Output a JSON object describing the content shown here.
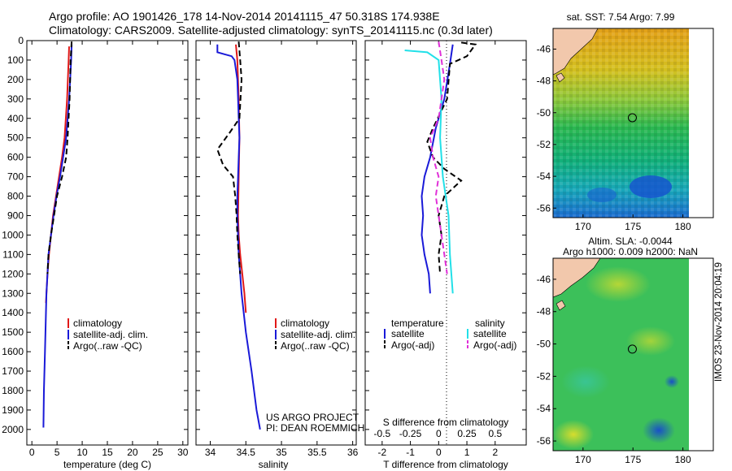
{
  "header": {
    "line1": "Argo profile: AO 1901426_178 14-Nov-2014 20141115_47 50.318S 174.938E",
    "line2": "Climatology: CARS2009. Satellite-adjusted climatology: synTS_20141115.nc (0.3d later)"
  },
  "colors": {
    "climatology": "#e01818",
    "satellite": "#1a1ad8",
    "argo": "#000000",
    "sat_salinity": "#22e0e8",
    "argo_salinity": "#e030d8"
  },
  "chart_data": [
    {
      "type": "line",
      "xlabel": "temperature (deg C)",
      "ylabel": "",
      "xlim": [
        -1,
        31
      ],
      "ylim": [
        2080,
        0
      ],
      "x_ticks": [
        "0",
        "5",
        "10",
        "15",
        "20",
        "25",
        "30"
      ],
      "y_ticks": [
        "0",
        "100",
        "200",
        "300",
        "400",
        "500",
        "600",
        "700",
        "800",
        "900",
        "1000",
        "1100",
        "1200",
        "1300",
        "1400",
        "1500",
        "1600",
        "1700",
        "1800",
        "1900",
        "2000"
      ],
      "legend_position": "lower-right",
      "series": [
        {
          "name": "climatology",
          "color_key": "climatology",
          "dash": "solid",
          "points": [
            [
              7.4,
              30
            ],
            [
              7.3,
              100
            ],
            [
              7.0,
              300
            ],
            [
              6.5,
              500
            ],
            [
              6.0,
              600
            ],
            [
              5.4,
              700
            ],
            [
              4.8,
              800
            ],
            [
              4.2,
              900
            ],
            [
              3.8,
              1000
            ],
            [
              3.4,
              1100
            ],
            [
              3.1,
              1200
            ],
            [
              2.9,
              1300
            ],
            [
              2.8,
              1350
            ]
          ]
        },
        {
          "name": "satellite-adj. clim.",
          "color_key": "satellite",
          "dash": "solid",
          "points": [
            [
              7.9,
              20
            ],
            [
              7.8,
              100
            ],
            [
              7.4,
              300
            ],
            [
              6.8,
              500
            ],
            [
              6.2,
              600
            ],
            [
              5.6,
              700
            ],
            [
              4.9,
              800
            ],
            [
              4.3,
              900
            ],
            [
              3.8,
              1000
            ],
            [
              3.3,
              1100
            ],
            [
              3.1,
              1200
            ],
            [
              2.9,
              1300
            ],
            [
              2.8,
              1400
            ],
            [
              2.6,
              1600
            ],
            [
              2.4,
              1800
            ],
            [
              2.3,
              1990
            ]
          ]
        },
        {
          "name": "Argo(..raw -QC)",
          "color_key": "argo",
          "dash": "dashed",
          "points": [
            [
              7.9,
              5
            ],
            [
              7.8,
              50
            ],
            [
              7.7,
              100
            ],
            [
              7.5,
              300
            ],
            [
              7.1,
              500
            ],
            [
              6.8,
              600
            ],
            [
              6.0,
              700
            ],
            [
              5.0,
              800
            ],
            [
              4.4,
              900
            ],
            [
              3.8,
              1000
            ],
            [
              3.3,
              1100
            ],
            [
              3.1,
              1200
            ]
          ]
        }
      ]
    },
    {
      "type": "line",
      "xlabel": "salinity",
      "ylabel": "",
      "xlim": [
        33.8,
        36.05
      ],
      "ylim": [
        2080,
        0
      ],
      "x_ticks": [
        "34",
        "34.5",
        "35",
        "35.5",
        "36"
      ],
      "legend_position": "lower-right",
      "annotations": [
        "US ARGO PROJECT",
        "PI: DEAN ROEMMICH"
      ],
      "series": [
        {
          "name": "climatology",
          "color_key": "climatology",
          "dash": "solid",
          "points": [
            [
              34.36,
              20
            ],
            [
              34.38,
              100
            ],
            [
              34.4,
              300
            ],
            [
              34.41,
              500
            ],
            [
              34.4,
              700
            ],
            [
              34.39,
              900
            ],
            [
              34.4,
              1000
            ],
            [
              34.42,
              1100
            ],
            [
              34.45,
              1200
            ],
            [
              34.48,
              1300
            ],
            [
              34.5,
              1400
            ]
          ]
        },
        {
          "name": "satellite-adj. clim.",
          "color_key": "satellite",
          "dash": "solid",
          "points": [
            [
              34.1,
              20
            ],
            [
              34.1,
              60
            ],
            [
              34.2,
              70
            ],
            [
              34.3,
              80
            ],
            [
              34.34,
              100
            ],
            [
              34.38,
              200
            ],
            [
              34.39,
              300
            ],
            [
              34.4,
              400
            ],
            [
              34.41,
              500
            ],
            [
              34.4,
              600
            ],
            [
              34.39,
              700
            ],
            [
              34.38,
              800
            ],
            [
              34.38,
              900
            ],
            [
              34.39,
              1000
            ],
            [
              34.4,
              1100
            ],
            [
              34.44,
              1300
            ],
            [
              34.5,
              1500
            ],
            [
              34.58,
              1700
            ],
            [
              34.65,
              1900
            ],
            [
              34.7,
              2000
            ]
          ]
        },
        {
          "name": "Argo(..raw -QC)",
          "color_key": "argo",
          "dash": "dashed",
          "points": [
            [
              34.4,
              5
            ],
            [
              34.42,
              100
            ],
            [
              34.44,
              200
            ],
            [
              34.41,
              400
            ],
            [
              34.28,
              470
            ],
            [
              34.1,
              560
            ],
            [
              34.18,
              640
            ],
            [
              34.32,
              700
            ],
            [
              34.35,
              800
            ],
            [
              34.37,
              900
            ],
            [
              34.38,
              1000
            ],
            [
              34.4,
              1100
            ],
            [
              34.42,
              1200
            ]
          ]
        }
      ]
    },
    {
      "type": "line",
      "xlabel": "T difference from climatology",
      "xlabel_top": "S difference from climatology",
      "xlim": [
        -2.6,
        3.1
      ],
      "ylim": [
        2080,
        0
      ],
      "x_ticks": [
        "-2",
        "-1",
        "0",
        "1",
        "2"
      ],
      "x_ticks_top": [
        "-0.5",
        "-0.25",
        "0",
        "0.25",
        "0.5"
      ],
      "legend_position": "lower",
      "legend_headers": [
        "temperature",
        "salinity"
      ],
      "series": [
        {
          "name": "satellite",
          "group": "temperature",
          "color_key": "satellite",
          "dash": "solid",
          "points": [
            [
              0.5,
              20
            ],
            [
              0.4,
              120
            ],
            [
              0.2,
              300
            ],
            [
              -0.1,
              450
            ],
            [
              -0.3,
              600
            ],
            [
              -0.5,
              700
            ],
            [
              -0.6,
              800
            ],
            [
              -0.55,
              900
            ],
            [
              -0.6,
              1000
            ],
            [
              -0.5,
              1100
            ],
            [
              -0.35,
              1200
            ],
            [
              -0.3,
              1300
            ]
          ]
        },
        {
          "name": "Argo(-adj)",
          "group": "temperature",
          "color_key": "argo",
          "dash": "dashed",
          "points": [
            [
              0.8,
              10
            ],
            [
              1.3,
              20
            ],
            [
              1.0,
              80
            ],
            [
              0.4,
              120
            ],
            [
              0.3,
              300
            ],
            [
              -0.2,
              450
            ],
            [
              -0.4,
              520
            ],
            [
              -0.2,
              600
            ],
            [
              0.2,
              660
            ],
            [
              0.8,
              720
            ],
            [
              0.2,
              800
            ],
            [
              0.0,
              900
            ],
            [
              0.1,
              1000
            ],
            [
              0.0,
              1100
            ],
            [
              0.05,
              1200
            ]
          ]
        },
        {
          "name": "satellite",
          "group": "salinity",
          "color_key": "sat_salinity",
          "dash": "solid",
          "points": [
            [
              -1.2,
              50
            ],
            [
              -0.4,
              60
            ],
            [
              0.0,
              100
            ],
            [
              0.1,
              300
            ],
            [
              0.05,
              500
            ],
            [
              0.15,
              700
            ],
            [
              0.35,
              900
            ],
            [
              0.4,
              1100
            ],
            [
              0.5,
              1300
            ]
          ]
        },
        {
          "name": "Argo(-adj)",
          "group": "salinity",
          "color_key": "argo_salinity",
          "dash": "dashed",
          "points": [
            [
              0.0,
              5
            ],
            [
              0.1,
              100
            ],
            [
              0.2,
              200
            ],
            [
              0.1,
              300
            ],
            [
              0.0,
              400
            ],
            [
              -0.3,
              500
            ],
            [
              -0.2,
              600
            ],
            [
              0.0,
              700
            ],
            [
              -0.1,
              800
            ],
            [
              0.0,
              900
            ],
            [
              0.1,
              1000
            ],
            [
              0.2,
              1100
            ],
            [
              0.3,
              1200
            ]
          ]
        }
      ]
    },
    {
      "type": "heatmap",
      "title": "sat. SST: 7.54 Argo: 7.99",
      "x_ticks": [
        "170",
        "175",
        "180"
      ],
      "y_ticks": [
        "-46",
        "-48",
        "-50",
        "-52",
        "-54",
        "-56"
      ],
      "xlim": [
        167,
        180.6
      ],
      "ylim": [
        -56.6,
        -44.7
      ],
      "argo_position": [
        174.938,
        -50.318
      ]
    },
    {
      "type": "heatmap",
      "title": "Altim. SLA: -0.0044",
      "subtitle": "Argo h1000: 0.009 h2000: NaN",
      "x_ticks": [
        "170",
        "175",
        "180"
      ],
      "y_ticks": [
        "-46",
        "-48",
        "-50",
        "-52",
        "-54",
        "-56"
      ],
      "xlim": [
        167,
        180.6
      ],
      "ylim": [
        -56.6,
        -44.7
      ],
      "argo_position": [
        174.938,
        -50.318
      ]
    }
  ],
  "side_label": "IMOS 23-Nov-2014 20:04:19"
}
